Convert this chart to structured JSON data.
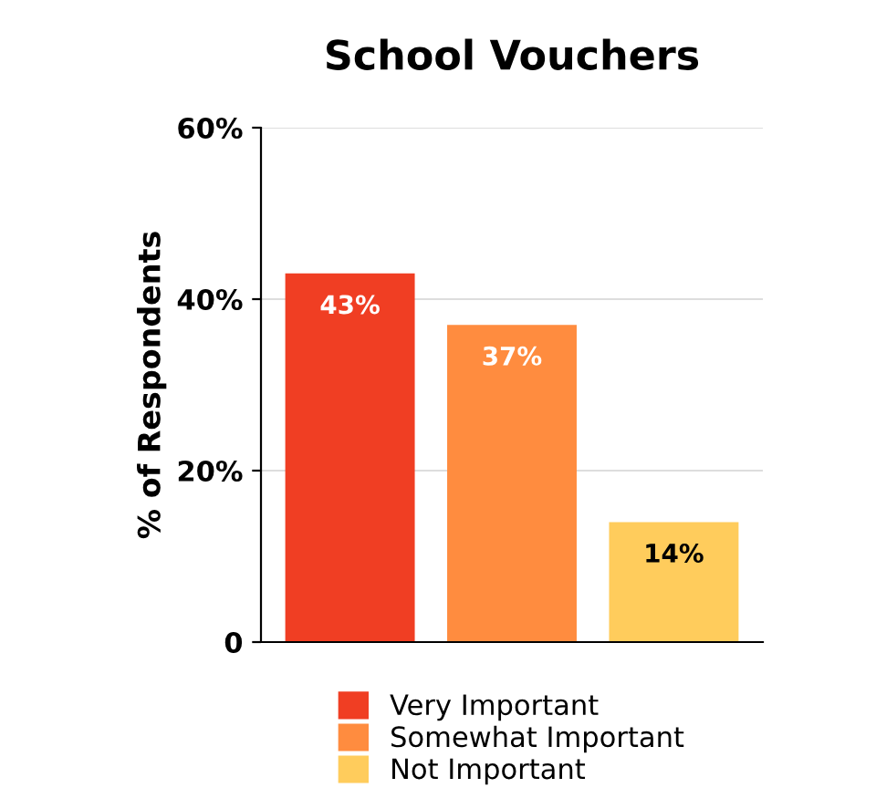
{
  "chart_data": {
    "type": "bar",
    "title": "School Vouchers",
    "ylabel": "% of Respondents",
    "categories": [
      null,
      null,
      null
    ],
    "series": [
      {
        "name": "Very Important",
        "color": "#f03e23",
        "values": [
          43,
          null,
          null
        ],
        "value_labels": [
          "43%",
          null,
          null
        ]
      },
      {
        "name": "Somewhat Important",
        "color": "#ff8c3f",
        "values": [
          null,
          37,
          null
        ],
        "value_labels": [
          null,
          "37%",
          null
        ]
      },
      {
        "name": "Not Important",
        "color": "#ffcc5c",
        "values": [
          null,
          null,
          14
        ],
        "value_labels": [
          null,
          null,
          "14%"
        ]
      }
    ],
    "ylim": [
      0,
      60
    ],
    "yticks": [
      0,
      {
        "value": 20,
        "label": "20%"
      },
      {
        "value": 40,
        "label": "40%"
      },
      {
        "value": 60,
        "label": "60%"
      }
    ],
    "grid": "y",
    "legend": "bottom"
  }
}
